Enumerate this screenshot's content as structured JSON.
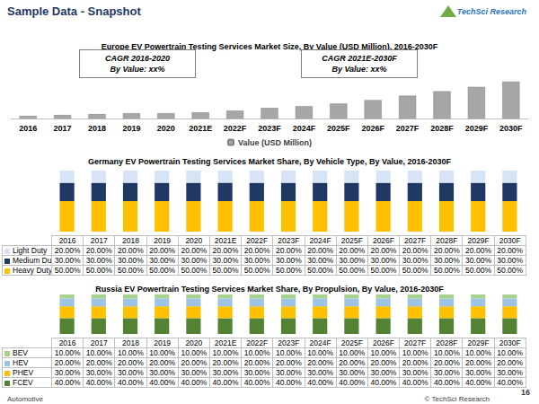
{
  "header": {
    "title": "Sample Data - Snapshot",
    "logo": "TechSci Research"
  },
  "footer": {
    "left": "Automotive",
    "right": "© TechSci Research",
    "page": "16"
  },
  "chart_data": [
    {
      "type": "bar",
      "title": "Europe EV Powertrain Testing Services Market Size, By Value (USD Million), 2016-2030F",
      "categories": [
        "2016",
        "2017",
        "2018",
        "2019",
        "2020",
        "2021E",
        "2022F",
        "2023F",
        "2024F",
        "2025F",
        "2026F",
        "2027F",
        "2028F",
        "2029F",
        "2030F"
      ],
      "series": [
        {
          "name": "Value (USD Million)",
          "color": "#a6a6a6",
          "values": [
            3,
            4,
            5,
            6,
            6,
            7,
            9,
            12,
            14,
            17,
            21,
            26,
            31,
            36,
            42
          ]
        }
      ],
      "ylim": [
        0,
        45
      ],
      "tick_labels": "x",
      "legend": "bottom",
      "annotations": [
        {
          "title": "CAGR 2016-2020",
          "text": "By Value: xx%"
        },
        {
          "title": "CAGR 2021E-2030F",
          "text": "By Value: xx%"
        }
      ]
    },
    {
      "type": "bar",
      "title": "Germany EV Powertrain Testing Services Market Share, By Vehicle Type, By Value, 2016-2030F",
      "categories": [
        "2016",
        "2017",
        "2018",
        "2019",
        "2020",
        "2021E",
        "2022F",
        "2023F",
        "2024F",
        "2025F",
        "2026F",
        "2027F",
        "2028F",
        "2029F",
        "2030F"
      ],
      "stacked": true,
      "ylim": [
        0,
        100
      ],
      "tick_labels": false,
      "series": [
        {
          "name": "Light Duty",
          "color": "#d6e4f5",
          "values": [
            20,
            20,
            20,
            20,
            20,
            20,
            20,
            20,
            20,
            20,
            20,
            20,
            20,
            20,
            20
          ],
          "value_labels": [
            "20.00%",
            "20.00%",
            "20.00%",
            "20.00%",
            "20.00%",
            "20.00%",
            "20.00%",
            "20.00%",
            "20.00%",
            "20.00%",
            "20.00%",
            "20.00%",
            "20.00%",
            "20.00%",
            "20.00%"
          ]
        },
        {
          "name": "Medium Duty",
          "color": "#203864",
          "values": [
            30,
            30,
            30,
            30,
            30,
            30,
            30,
            30,
            30,
            30,
            30,
            30,
            30,
            30,
            30
          ],
          "value_labels": [
            "30.00%",
            "30.00%",
            "30.00%",
            "30.00%",
            "30.00%",
            "30.00%",
            "30.00%",
            "30.00%",
            "30.00%",
            "30.00%",
            "30.00%",
            "30.00%",
            "30.00%",
            "30.00%",
            "30.00%"
          ]
        },
        {
          "name": "Heavy Duty",
          "color": "#ffc000",
          "values": [
            50,
            50,
            50,
            50,
            50,
            50,
            50,
            50,
            50,
            50,
            50,
            50,
            50,
            50,
            50
          ],
          "value_labels": [
            "50.00%",
            "50.00%",
            "50.00%",
            "50.00%",
            "50.00%",
            "50.00%",
            "50.00%",
            "50.00%",
            "50.00%",
            "50.00%",
            "50.00%",
            "50.00%",
            "50.00%",
            "50.00%",
            "50.00%"
          ]
        }
      ]
    },
    {
      "type": "bar",
      "title": "Russia EV Powertrain Testing Services Market Share, By Propulsion, By Value, 2016-2030F",
      "categories": [
        "2016",
        "2017",
        "2018",
        "2019",
        "2020",
        "2021E",
        "2022F",
        "2023F",
        "2024F",
        "2025F",
        "2026F",
        "2027F",
        "2028F",
        "2029F",
        "2030F"
      ],
      "stacked": true,
      "ylim": [
        0,
        100
      ],
      "tick_labels": false,
      "series": [
        {
          "name": "BEV",
          "color": "#a9d18e",
          "values": [
            10,
            10,
            10,
            10,
            10,
            10,
            10,
            10,
            10,
            10,
            10,
            10,
            10,
            10,
            10
          ],
          "value_labels": [
            "10.00%",
            "10.00%",
            "10.00%",
            "10.00%",
            "10.00%",
            "10.00%",
            "10.00%",
            "10.00%",
            "10.00%",
            "10.00%",
            "10.00%",
            "10.00%",
            "10.00%",
            "10.00%",
            "10.00%"
          ]
        },
        {
          "name": "HEV",
          "color": "#9dc3e6",
          "values": [
            20,
            20,
            20,
            20,
            20,
            20,
            20,
            20,
            20,
            20,
            20,
            20,
            20,
            20,
            20
          ],
          "value_labels": [
            "20.00%",
            "20.00%",
            "20.00%",
            "20.00%",
            "20.00%",
            "20.00%",
            "20.00%",
            "20.00%",
            "20.00%",
            "20.00%",
            "20.00%",
            "20.00%",
            "20.00%",
            "20.00%",
            "20.00%"
          ]
        },
        {
          "name": "PHEV",
          "color": "#ffc000",
          "values": [
            30,
            30,
            30,
            30,
            30,
            30,
            30,
            30,
            30,
            30,
            30,
            30,
            30,
            30,
            30
          ],
          "value_labels": [
            "30.00%",
            "30.00%",
            "30.00%",
            "30.00%",
            "30.00%",
            "30.00%",
            "30.00%",
            "30.00%",
            "30.00%",
            "30.00%",
            "30.00%",
            "30.00%",
            "30.00%",
            "30.00%",
            "30.00%"
          ]
        },
        {
          "name": "FCEV",
          "color": "#548235",
          "values": [
            40,
            40,
            40,
            40,
            40,
            40,
            40,
            40,
            40,
            40,
            40,
            40,
            40,
            40,
            40
          ],
          "value_labels": [
            "40.00%",
            "40.00%",
            "40.00%",
            "40.00%",
            "40.00%",
            "40.00%",
            "40.00%",
            "40.00%",
            "40.00%",
            "40.00%",
            "40.00%",
            "40.00%",
            "40.00%",
            "40.00%",
            "40.00%"
          ]
        }
      ]
    }
  ]
}
